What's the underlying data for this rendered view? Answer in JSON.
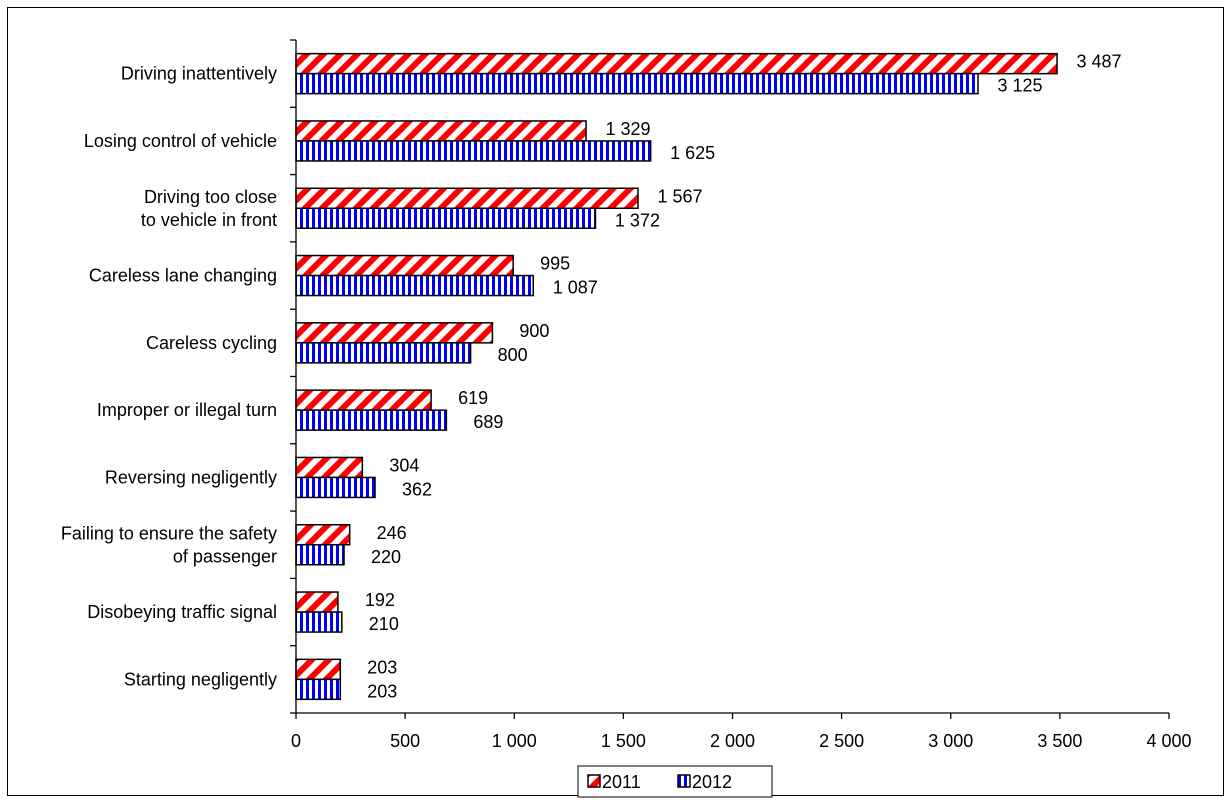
{
  "chart_data": {
    "type": "bar",
    "orientation": "horizontal",
    "categories": [
      [
        "Driving inattentively"
      ],
      [
        "Losing control of vehicle"
      ],
      [
        "Driving too close",
        "to vehicle in front"
      ],
      [
        "Careless lane changing"
      ],
      [
        "Careless cycling"
      ],
      [
        "Improper or illegal turn"
      ],
      [
        "Reversing negligently"
      ],
      [
        "Failing to ensure the safety",
        "of passenger"
      ],
      [
        "Disobeying traffic signal"
      ],
      [
        "Starting negligently"
      ]
    ],
    "series": [
      {
        "name": "2011",
        "values": [
          3487,
          1329,
          1567,
          995,
          900,
          619,
          304,
          246,
          192,
          203
        ],
        "labels": [
          "3 487",
          "1 329",
          "1 567",
          "995",
          "900",
          "619",
          "304",
          "246",
          "192",
          "203"
        ],
        "color": "#ff0000",
        "pattern": "diagonal-stripes"
      },
      {
        "name": "2012",
        "values": [
          3125,
          1625,
          1372,
          1087,
          800,
          689,
          362,
          220,
          210,
          203
        ],
        "labels": [
          "3 125",
          "1 625",
          "1 372",
          "1 087",
          "800",
          "689",
          "362",
          "220",
          "210",
          "203"
        ],
        "color": "#0000ff",
        "pattern": "vertical-stripes"
      }
    ],
    "xlim": [
      0,
      4000
    ],
    "ticks": [
      0,
      500,
      1000,
      1500,
      2000,
      2500,
      3000,
      3500,
      4000
    ],
    "tick_labels": [
      "0",
      "500",
      "1 000",
      "1 500",
      "2 000",
      "2 500",
      "3 000",
      "3 500",
      "4 000"
    ],
    "grid": false,
    "legend_position": "bottom-center",
    "title": "",
    "xlabel": "",
    "ylabel": ""
  }
}
